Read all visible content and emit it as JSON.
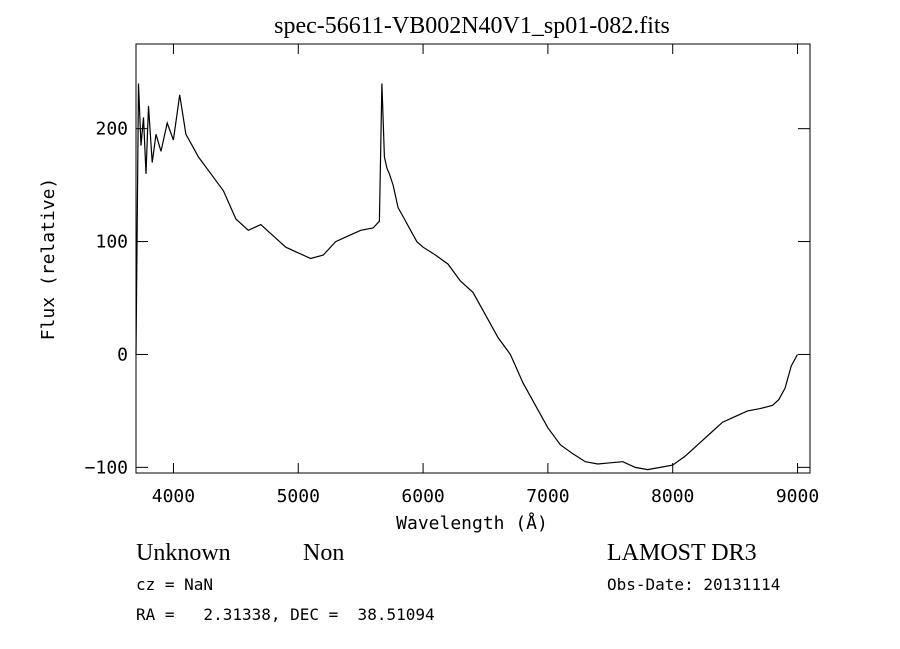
{
  "chart_data": {
    "type": "line",
    "title": "spec-56611-VB002N40V1_sp01-082.fits",
    "xlabel": "Wavelength (Å)",
    "ylabel": "Flux (relative)",
    "xlim": [
      3700,
      9100
    ],
    "ylim": [
      -105,
      275
    ],
    "x_ticks": [
      4000,
      5000,
      6000,
      7000,
      8000,
      9000
    ],
    "y_ticks": [
      -100,
      0,
      100,
      200
    ],
    "grid": false,
    "series": [
      {
        "x": [
          3700,
          3720,
          3740,
          3760,
          3780,
          3800,
          3830,
          3860,
          3900,
          3950,
          4000,
          4050,
          4100,
          4150,
          4200,
          4300,
          4400,
          4500,
          4600,
          4700,
          4800,
          4900,
          5000,
          5100,
          5200,
          5300,
          5400,
          5500,
          5600,
          5650,
          5670,
          5690,
          5710,
          5730,
          5760,
          5800,
          5850,
          5900,
          5950,
          6000,
          6100,
          6200,
          6300,
          6400,
          6500,
          6600,
          6700,
          6800,
          6900,
          7000,
          7100,
          7200,
          7300,
          7400,
          7500,
          7600,
          7700,
          7800,
          7900,
          8000,
          8100,
          8200,
          8300,
          8400,
          8500,
          8600,
          8700,
          8800,
          8850,
          8900,
          8950,
          9000
        ],
        "values": [
          0,
          240,
          185,
          210,
          160,
          220,
          170,
          195,
          180,
          205,
          190,
          230,
          195,
          185,
          175,
          160,
          145,
          120,
          110,
          115,
          105,
          95,
          90,
          85,
          88,
          100,
          105,
          110,
          112,
          118,
          240,
          175,
          165,
          160,
          150,
          130,
          120,
          110,
          100,
          95,
          88,
          80,
          65,
          55,
          35,
          15,
          0,
          -25,
          -45,
          -65,
          -80,
          -88,
          -95,
          -97,
          -96,
          -95,
          -100,
          -102,
          -100,
          -98,
          -90,
          -80,
          -70,
          -60,
          -55,
          -50,
          -48,
          -45,
          -40,
          -30,
          -10,
          0
        ]
      }
    ]
  },
  "annotations": {
    "object_class": "Unknown",
    "object_subclass": "Non",
    "survey": "LAMOST DR3",
    "cz": "cz = NaN",
    "obs_date": "Obs-Date: 20131114",
    "coords": "RA =   2.31338, DEC =  38.51094"
  }
}
